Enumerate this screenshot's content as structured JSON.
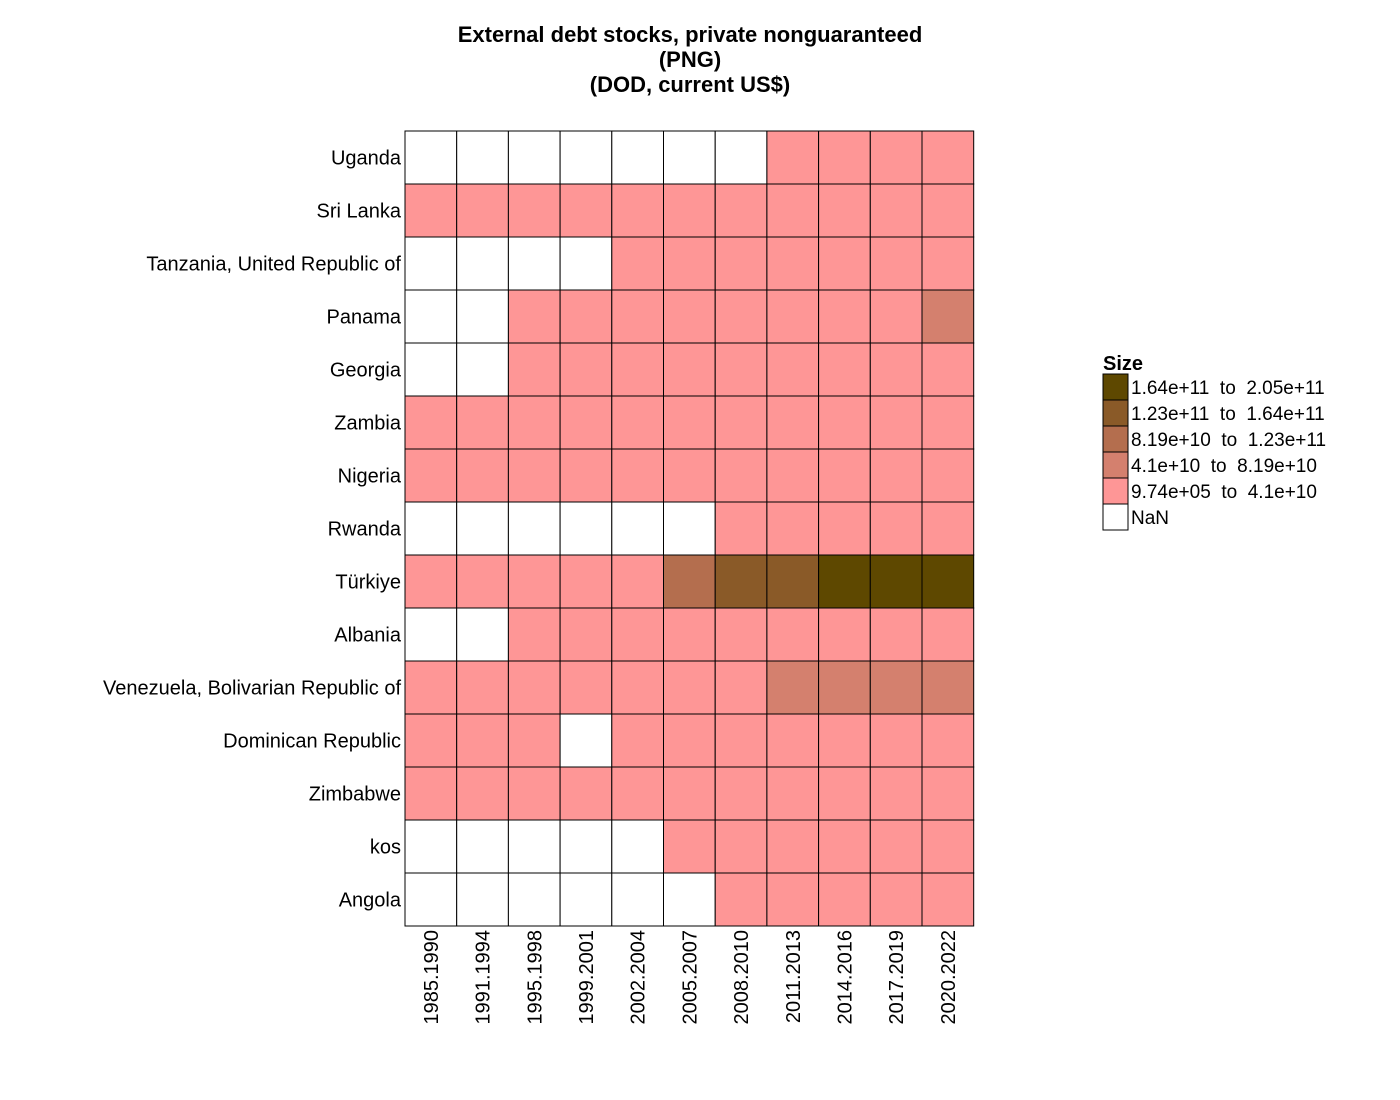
{
  "chart_data": {
    "type": "heatmap",
    "title_lines": [
      "External debt stocks, private nonguaranteed",
      "(PNG)",
      "(DOD, current US$)"
    ],
    "x_categories": [
      "1985.1990",
      "1991.1994",
      "1995.1998",
      "1999.2001",
      "2002.2004",
      "2005.2007",
      "2008.2010",
      "2011.2013",
      "2014.2016",
      "2017.2019",
      "2020.2022"
    ],
    "y_categories": [
      "Uganda",
      "Sri Lanka",
      "Tanzania, United Republic of",
      "Panama",
      "Georgia",
      "Zambia",
      "Nigeria",
      "Rwanda",
      "Türkiye",
      "Albania",
      "Venezuela, Bolivarian Republic of",
      "Dominican Republic",
      "Zimbabwe",
      "kos",
      "Angola"
    ],
    "legend": {
      "title": "Size",
      "position": "right",
      "bins": [
        {
          "label": "1.64e+11  to  2.05e+11",
          "color": "#5e4800"
        },
        {
          "label": "1.23e+11  to  1.64e+11",
          "color": "#8a5a28"
        },
        {
          "label": "8.19e+10  to  1.23e+11",
          "color": "#b46e4e"
        },
        {
          "label": "4.1e+10  to  8.19e+10",
          "color": "#d4806e"
        },
        {
          "label": "9.74e+05  to  4.1e+10",
          "color": "#fe9696"
        },
        {
          "label": "NaN",
          "color": "#ffffff"
        }
      ]
    },
    "bin_matrix": [
      [
        5,
        5,
        5,
        5,
        5,
        5,
        5,
        4,
        4,
        4,
        4
      ],
      [
        4,
        4,
        4,
        4,
        4,
        4,
        4,
        4,
        4,
        4,
        4
      ],
      [
        5,
        5,
        5,
        5,
        4,
        4,
        4,
        4,
        4,
        4,
        4
      ],
      [
        5,
        5,
        4,
        4,
        4,
        4,
        4,
        4,
        4,
        4,
        3
      ],
      [
        5,
        5,
        4,
        4,
        4,
        4,
        4,
        4,
        4,
        4,
        4
      ],
      [
        4,
        4,
        4,
        4,
        4,
        4,
        4,
        4,
        4,
        4,
        4
      ],
      [
        4,
        4,
        4,
        4,
        4,
        4,
        4,
        4,
        4,
        4,
        4
      ],
      [
        5,
        5,
        5,
        5,
        5,
        5,
        4,
        4,
        4,
        4,
        4
      ],
      [
        4,
        4,
        4,
        4,
        4,
        2,
        1,
        1,
        0,
        0,
        0
      ],
      [
        5,
        5,
        4,
        4,
        4,
        4,
        4,
        4,
        4,
        4,
        4
      ],
      [
        4,
        4,
        4,
        4,
        4,
        4,
        4,
        3,
        3,
        3,
        3
      ],
      [
        4,
        4,
        4,
        5,
        4,
        4,
        4,
        4,
        4,
        4,
        4
      ],
      [
        4,
        4,
        4,
        4,
        4,
        4,
        4,
        4,
        4,
        4,
        4
      ],
      [
        5,
        5,
        5,
        5,
        5,
        4,
        4,
        4,
        4,
        4,
        4
      ],
      [
        5,
        5,
        5,
        5,
        5,
        5,
        4,
        4,
        4,
        4,
        4
      ]
    ]
  }
}
